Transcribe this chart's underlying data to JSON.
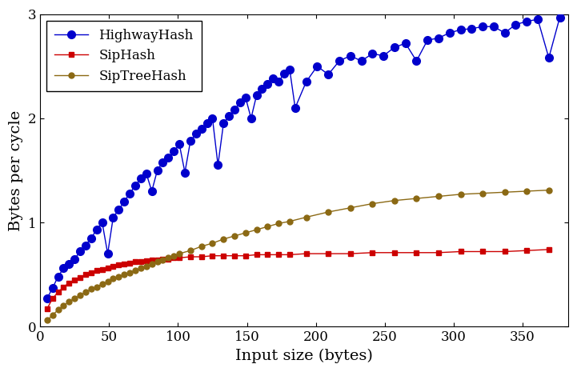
{
  "title": "",
  "xlabel": "Input size (bytes)",
  "ylabel": "Bytes per cycle",
  "xlim": [
    0,
    383
  ],
  "ylim": [
    0,
    3.0
  ],
  "xticks": [
    0,
    50,
    100,
    150,
    200,
    250,
    300,
    350
  ],
  "yticks": [
    0,
    1,
    2,
    3
  ],
  "background_color": "#ffffff",
  "series": [
    {
      "label": "HighwayHash",
      "color": "#0000cc",
      "marker": "o",
      "markersize": 7,
      "linewidth": 1.0,
      "x": [
        5,
        9,
        13,
        17,
        21,
        25,
        29,
        33,
        37,
        41,
        45,
        49,
        53,
        57,
        61,
        65,
        69,
        73,
        77,
        81,
        85,
        89,
        93,
        97,
        101,
        105,
        109,
        113,
        117,
        121,
        125,
        129,
        133,
        137,
        141,
        145,
        149,
        153,
        157,
        161,
        165,
        169,
        173,
        177,
        181,
        185,
        193,
        201,
        209,
        217,
        225,
        233,
        241,
        249,
        257,
        265,
        273,
        281,
        289,
        297,
        305,
        313,
        321,
        329,
        337,
        345,
        353,
        361,
        369,
        377
      ],
      "y": [
        0.27,
        0.37,
        0.48,
        0.56,
        0.6,
        0.65,
        0.72,
        0.78,
        0.85,
        0.93,
        1.0,
        0.7,
        1.05,
        1.12,
        1.2,
        1.28,
        1.35,
        1.42,
        1.47,
        1.3,
        1.5,
        1.58,
        1.62,
        1.68,
        1.75,
        1.48,
        1.78,
        1.85,
        1.9,
        1.95,
        2.0,
        1.55,
        1.95,
        2.02,
        2.08,
        2.15,
        2.2,
        2.0,
        2.22,
        2.28,
        2.33,
        2.38,
        2.35,
        2.43,
        2.47,
        2.1,
        2.35,
        2.5,
        2.42,
        2.55,
        2.6,
        2.55,
        2.62,
        2.6,
        2.68,
        2.72,
        2.55,
        2.75,
        2.77,
        2.82,
        2.85,
        2.86,
        2.88,
        2.88,
        2.82,
        2.9,
        2.93,
        2.95,
        2.58,
        2.97
      ]
    },
    {
      "label": "SipHash",
      "color": "#cc0000",
      "marker": "s",
      "markersize": 5,
      "linewidth": 1.0,
      "x": [
        5,
        9,
        13,
        17,
        21,
        25,
        29,
        33,
        37,
        41,
        45,
        49,
        53,
        57,
        61,
        65,
        69,
        73,
        77,
        81,
        85,
        89,
        93,
        97,
        101,
        109,
        117,
        125,
        133,
        141,
        149,
        157,
        165,
        173,
        181,
        193,
        209,
        225,
        241,
        257,
        273,
        289,
        305,
        321,
        337,
        353,
        369
      ],
      "y": [
        0.17,
        0.27,
        0.33,
        0.38,
        0.42,
        0.45,
        0.47,
        0.5,
        0.52,
        0.54,
        0.55,
        0.56,
        0.58,
        0.59,
        0.6,
        0.61,
        0.62,
        0.62,
        0.63,
        0.64,
        0.64,
        0.65,
        0.65,
        0.66,
        0.66,
        0.67,
        0.67,
        0.68,
        0.68,
        0.68,
        0.68,
        0.69,
        0.69,
        0.69,
        0.69,
        0.7,
        0.7,
        0.7,
        0.71,
        0.71,
        0.71,
        0.71,
        0.72,
        0.72,
        0.72,
        0.73,
        0.74
      ]
    },
    {
      "label": "SipTreeHash",
      "color": "#8B6914",
      "marker": "o",
      "markersize": 5,
      "linewidth": 1.0,
      "x": [
        5,
        9,
        13,
        17,
        21,
        25,
        29,
        33,
        37,
        41,
        45,
        49,
        53,
        57,
        61,
        65,
        69,
        73,
        77,
        81,
        85,
        89,
        93,
        97,
        101,
        109,
        117,
        125,
        133,
        141,
        149,
        157,
        165,
        173,
        181,
        193,
        209,
        225,
        241,
        257,
        273,
        289,
        305,
        321,
        337,
        353,
        369
      ],
      "y": [
        0.06,
        0.11,
        0.16,
        0.2,
        0.24,
        0.27,
        0.3,
        0.33,
        0.36,
        0.38,
        0.41,
        0.43,
        0.46,
        0.48,
        0.5,
        0.52,
        0.54,
        0.56,
        0.58,
        0.6,
        0.62,
        0.64,
        0.66,
        0.68,
        0.7,
        0.73,
        0.77,
        0.8,
        0.84,
        0.87,
        0.9,
        0.93,
        0.96,
        0.99,
        1.01,
        1.05,
        1.1,
        1.14,
        1.18,
        1.21,
        1.23,
        1.25,
        1.27,
        1.28,
        1.29,
        1.3,
        1.31
      ]
    }
  ],
  "legend_loc": "upper left",
  "legend_fontsize": 12,
  "axis_fontsize": 14,
  "tick_fontsize": 12,
  "grid": false,
  "font_family": "serif"
}
